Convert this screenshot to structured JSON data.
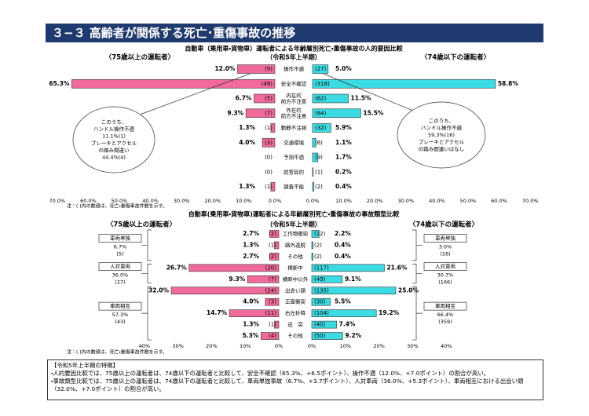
{
  "header": {
    "title": "３−３ 高齢者が関係する死亡･重傷事故の推移"
  },
  "chart_data": [
    {
      "type": "butterfly",
      "title": "自動車（乗用車・貨物車）運転者による年齢層別死亡・重傷事故の人的要因比較",
      "subtitle": "（令和5年上半期）",
      "categories": [
        "操作不適",
        "安全不確認",
        "内在的\n前方不注意",
        "外在的\n前方不注意",
        "動静不注視",
        "交通環境",
        "予測不適",
        "妨害目的",
        "調査不能"
      ],
      "series": [
        {
          "name": "〈75歳以上の運転者〉",
          "color": "#f06a9c",
          "values": [
            12.0,
            65.3,
            6.7,
            9.3,
            1.3,
            4.0,
            0,
            0,
            1.3
          ],
          "value_labels": [
            "12.0%",
            "65.3%",
            "6.7%",
            "9.3%",
            "1.3%",
            "4.0%",
            null,
            null,
            "1.3%"
          ],
          "counts": [
            "(9)",
            "(49)",
            "(5)",
            "(7)",
            "(1)",
            "(3)",
            "(0)",
            "(0)",
            "(1)"
          ]
        },
        {
          "name": "〈74歳以下の運転者〉",
          "color": "#3adbe2",
          "values": [
            5.0,
            58.8,
            11.5,
            15.5,
            5.9,
            1.1,
            1.7,
            0.2,
            0.4
          ],
          "value_labels": [
            "5.0%",
            "58.8%",
            "11.5%",
            "15.5%",
            "5.9%",
            "1.1%",
            "1.7%",
            "0.2%",
            "0.4%"
          ],
          "counts": [
            "(27)",
            "(318)",
            "(62)",
            "(84)",
            "(32)",
            "(6)",
            "(9)",
            "(1)",
            "(2)"
          ]
        }
      ],
      "xlim": [
        0,
        70
      ],
      "xticks": [
        {
          "value": 0,
          "label": "0.0%"
        },
        {
          "value": 10,
          "label": "10.0%"
        },
        {
          "value": 20,
          "label": "20.0%"
        },
        {
          "value": 30,
          "label": "30.0%"
        },
        {
          "value": 40,
          "label": "40.0%"
        },
        {
          "value": 50,
          "label": "50.0%"
        },
        {
          "value": 60,
          "label": "60.0%"
        },
        {
          "value": 70,
          "label": "70.0%"
        }
      ],
      "callouts": [
        [
          "このうち、",
          "ハンドル操作不適",
          "11.1%(1)",
          "ブレーキとアクセル",
          "の踏み間違い",
          "44.4%(4)"
        ],
        [
          "このうち、",
          "ハンドル操作不適",
          "59.3%(16)",
          "ブレーキとアクセル",
          "の踏み間違いはなし"
        ]
      ],
      "note": "注：( )内の数値は、死亡・重傷事故件数を示す。"
    },
    {
      "type": "butterfly",
      "title": "自動車(乗用車・貨物車)運転者による年齢層別死亡・重傷事故の事故類型比較",
      "subtitle": "（令和5年上半期）",
      "categories": [
        "工作物衝突",
        "路外逸脱",
        "その他",
        "横断中",
        "横断中以外",
        "出会い頭",
        "正面衝突",
        "右左折時",
        "追　突",
        "その他"
      ],
      "series": [
        {
          "name": "〈75歳以上の運転者〉",
          "color": "#f06a9c",
          "values": [
            2.7,
            1.3,
            2.7,
            26.7,
            9.3,
            32.0,
            4.0,
            14.7,
            1.3,
            5.3
          ],
          "value_labels": [
            "2.7%",
            "1.3%",
            "2.7%",
            "26.7%",
            "9.3%",
            "32.0%",
            "4.0%",
            "14.7%",
            "1.3%",
            "5.3%"
          ],
          "counts": [
            "(2)",
            "(1)",
            "(2)",
            "(20)",
            "(7)",
            "(24)",
            "(3)",
            "(11)",
            "(1)",
            "(4)"
          ],
          "groups": [
            {
              "name": "車両単独",
              "share": "6.7%",
              "count": "(5)"
            },
            {
              "name": "人対車両",
              "share": "36.0%",
              "count": "(27)"
            },
            {
              "name": "車両相互",
              "share": "57.3%",
              "count": "(43)"
            }
          ]
        },
        {
          "name": "〈74歳以下の運転者〉",
          "color": "#3adbe2",
          "values": [
            2.2,
            0.4,
            0.4,
            21.6,
            9.1,
            25.0,
            5.5,
            19.2,
            7.4,
            9.2
          ],
          "value_labels": [
            "2.2%",
            "0.4%",
            "0.4%",
            "21.6%",
            "9.1%",
            "25.0%",
            "5.5%",
            "19.2%",
            "7.4%",
            "9.2%"
          ],
          "counts": [
            "(12)",
            "(2)",
            "(2)",
            "(117)",
            "(49)",
            "(135)",
            "(30)",
            "(104)",
            "(40)",
            "(50)"
          ],
          "groups": [
            {
              "name": "車両単独",
              "share": "3.0%",
              "count": "(16)"
            },
            {
              "name": "人対車両",
              "share": "30.7%",
              "count": "(166)"
            },
            {
              "name": "車両相互",
              "share": "66.4%",
              "count": "(359)"
            }
          ]
        }
      ],
      "xlim": [
        0,
        40
      ],
      "xticks": [
        {
          "value": 0,
          "label": "0%"
        },
        {
          "value": 10,
          "label": "10%"
        },
        {
          "value": 20,
          "label": "20%"
        },
        {
          "value": 30,
          "label": "30%"
        },
        {
          "value": 40,
          "label": "40%"
        }
      ],
      "note": "注：( )内の数値は、死亡・重傷事故件数を示す。"
    }
  ],
  "summary": {
    "heading": "【令和5年上半期の特徴】",
    "items": [
      "・人的要因比較では、75歳以上の運転者は、74歳以下の運転者と比較して、安全不確認（65.3%、+6.5ポイント）、操作不適（12.0%、+7.0ポイント）の割合が高い。",
      "・事故類型比較では、75歳以上の運転者は、74歳以下の運転者と比較して、車両単独事故（6.7%、+3.7ポイント）、人対車両（36.0%、+5.3ポイント）、車両相互における出会い頭（32.0%、+7.0ポイント）の割合が高い。"
    ]
  }
}
